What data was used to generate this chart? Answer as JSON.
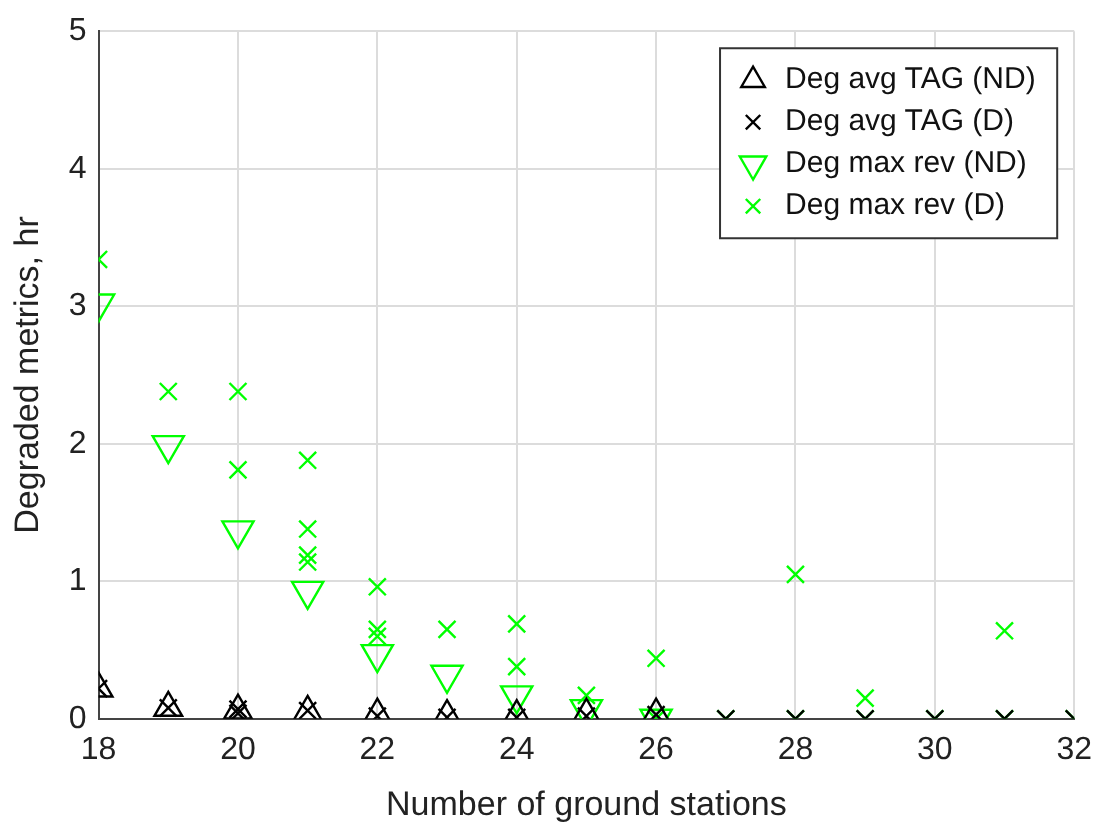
{
  "chart_data": {
    "type": "scatter",
    "xlabel": "Number of ground stations",
    "ylabel": "Degraded metrics, hr",
    "xlim": [
      18,
      32
    ],
    "xticks": [
      18,
      20,
      22,
      24,
      26,
      28,
      30,
      32
    ],
    "ylim": [
      0,
      5
    ],
    "yticks": [
      0,
      1,
      2,
      3,
      4,
      5
    ],
    "grid": true,
    "legend": "top right",
    "series": [
      {
        "name": "Deg avg TAG (ND)",
        "color": "#000000",
        "marker": "triangle",
        "x": [
          18,
          19,
          20,
          21,
          22,
          23,
          24,
          25,
          26
        ],
        "values": [
          0.22,
          0.08,
          0.06,
          0.05,
          0.03,
          0.02,
          0.02,
          0.03,
          0.03
        ]
      },
      {
        "name": "Deg avg TAG (D)",
        "color": "#000000",
        "marker": "cross",
        "x": [
          18,
          19,
          20,
          20,
          21,
          22,
          23,
          24,
          25,
          26,
          27,
          28,
          29,
          30,
          31,
          32
        ],
        "values": [
          0.22,
          0.08,
          0.07,
          0.04,
          0.06,
          0.02,
          0.01,
          0.01,
          0.02,
          0.03,
          0,
          0,
          0,
          0,
          0,
          0
        ]
      },
      {
        "name": "Deg max rev (ND)",
        "color": "#00ff00",
        "marker": "triangle_down",
        "x": [
          18,
          19,
          20,
          21,
          22,
          23,
          24,
          25,
          26
        ],
        "values": [
          3.02,
          1.99,
          1.37,
          0.93,
          0.47,
          0.32,
          0.17,
          0.07,
          0
        ]
      },
      {
        "name": "Deg max rev (D)",
        "color": "#00ff00",
        "marker": "cross",
        "x": [
          18,
          19,
          20,
          20,
          21,
          21,
          21,
          21,
          22,
          22,
          22,
          23,
          24,
          24,
          25,
          26,
          26,
          27,
          28,
          28,
          29,
          29,
          30,
          31,
          31,
          32
        ],
        "values": [
          3.34,
          2.38,
          2.38,
          1.81,
          1.88,
          1.38,
          1.19,
          1.14,
          0.96,
          0.65,
          0.6,
          0.65,
          0.69,
          0.38,
          0.17,
          0.44,
          0,
          0,
          1.05,
          0,
          0.15,
          0,
          0,
          0.64,
          0,
          0
        ]
      }
    ]
  }
}
